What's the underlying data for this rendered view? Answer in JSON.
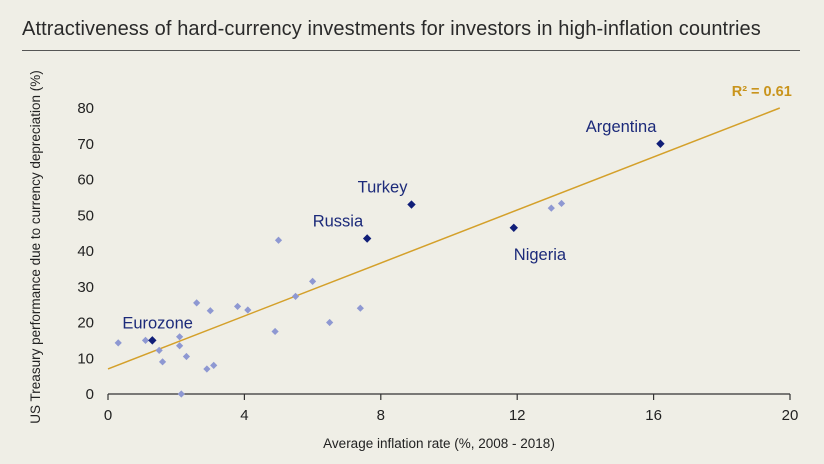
{
  "header": {
    "title": "Attractiveness of hard-currency investments for investors in high-inflation countries"
  },
  "colors": {
    "background": "#efeee6",
    "trendline": "#d4a02a",
    "highlight_point": "#101e78",
    "other_point": "#8e98d2",
    "label": "#1c2a7a"
  },
  "chart_data": {
    "type": "scatter",
    "title": "Attractiveness of hard-currency investments for investors in high-inflation countries",
    "xlabel": "Average inflation rate (%, 2008 - 2018)",
    "ylabel": "US Treasury performance due to currency depreciation (%)",
    "xlim": [
      0,
      20
    ],
    "ylim": [
      0,
      80
    ],
    "xticks": [
      0,
      4,
      8,
      12,
      16,
      20
    ],
    "yticks": [
      0,
      10,
      20,
      30,
      40,
      50,
      60,
      70,
      80
    ],
    "grid": false,
    "highlighted": [
      {
        "name": "Argentina",
        "x": 16.2,
        "y": 70,
        "label_pos": "above-left"
      },
      {
        "name": "Turkey",
        "x": 8.9,
        "y": 53,
        "label_pos": "above-left"
      },
      {
        "name": "Russia",
        "x": 7.6,
        "y": 43.5,
        "label_pos": "above-left"
      },
      {
        "name": "Nigeria",
        "x": 11.9,
        "y": 46.5,
        "label_pos": "below-right"
      },
      {
        "name": "Eurozone",
        "x": 1.3,
        "y": 15,
        "label_pos": "above-right"
      }
    ],
    "others": [
      {
        "x": 0.3,
        "y": 14.3
      },
      {
        "x": 1.1,
        "y": 15
      },
      {
        "x": 1.5,
        "y": 12.2
      },
      {
        "x": 1.6,
        "y": 9
      },
      {
        "x": 2.1,
        "y": 16
      },
      {
        "x": 2.1,
        "y": 13.5
      },
      {
        "x": 2.3,
        "y": 10.5
      },
      {
        "x": 2.6,
        "y": 25.5
      },
      {
        "x": 2.9,
        "y": 7
      },
      {
        "x": 3.0,
        "y": 23.3
      },
      {
        "x": 3.1,
        "y": 8
      },
      {
        "x": 2.15,
        "y": 0
      },
      {
        "x": 3.8,
        "y": 24.5
      },
      {
        "x": 4.1,
        "y": 23.5
      },
      {
        "x": 4.9,
        "y": 17.5
      },
      {
        "x": 5.0,
        "y": 43
      },
      {
        "x": 5.5,
        "y": 27.3
      },
      {
        "x": 6.0,
        "y": 31.5
      },
      {
        "x": 6.5,
        "y": 20
      },
      {
        "x": 7.4,
        "y": 24
      },
      {
        "x": 13.0,
        "y": 52
      },
      {
        "x": 13.3,
        "y": 53.3
      }
    ],
    "trendline": {
      "x": [
        0,
        19.7
      ],
      "y": [
        7,
        80
      ],
      "label": "R² = 0.61"
    }
  }
}
